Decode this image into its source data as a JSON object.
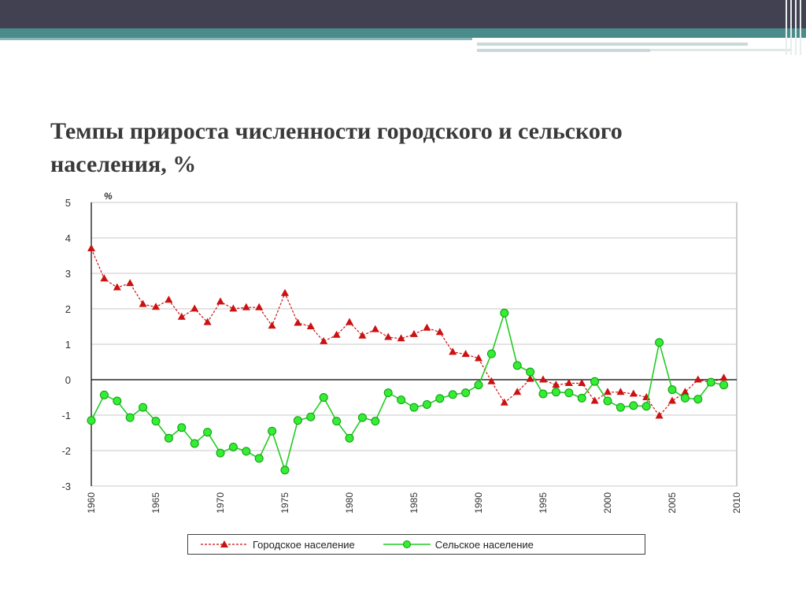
{
  "slide": {
    "title": "Темпы прироста численности городского и сельского населения, %"
  },
  "colors": {
    "urban": "#cc1111",
    "rural": "#22cc22",
    "rural_fill": "#33ee33",
    "grid": "#c8c8c8",
    "axis": "#000000"
  },
  "chart_data": {
    "type": "line",
    "unit_label": "%",
    "xlim": [
      1960,
      2010
    ],
    "ylim": [
      -3,
      5
    ],
    "x_ticks": [
      "1960",
      "1965",
      "1970",
      "1975",
      "1980",
      "1985",
      "1990",
      "1995",
      "2000",
      "2005",
      "2010"
    ],
    "y_ticks": [
      "5",
      "4",
      "3",
      "2",
      "1",
      "0",
      "-1",
      "-2",
      "-3"
    ],
    "legend_position": "bottom",
    "grid": true,
    "series": [
      {
        "name": "Городское население",
        "marker": "triangle",
        "x": [
          1960,
          1961,
          1962,
          1963,
          1964,
          1965,
          1966,
          1967,
          1968,
          1969,
          1970,
          1971,
          1972,
          1973,
          1974,
          1975,
          1976,
          1977,
          1978,
          1979,
          1980,
          1981,
          1982,
          1983,
          1984,
          1985,
          1986,
          1987,
          1988,
          1989,
          1990,
          1991,
          1992,
          1993,
          1994,
          1995,
          1996,
          1997,
          1998,
          1999,
          2000,
          2001,
          2002,
          2003,
          2004,
          2005,
          2006,
          2007,
          2008,
          2009
        ],
        "values": [
          3.7,
          2.85,
          2.6,
          2.72,
          2.13,
          2.05,
          2.25,
          1.77,
          2.0,
          1.62,
          2.2,
          2.0,
          2.04,
          2.04,
          1.52,
          2.44,
          1.6,
          1.5,
          1.08,
          1.26,
          1.62,
          1.24,
          1.42,
          1.2,
          1.16,
          1.28,
          1.46,
          1.34,
          0.78,
          0.72,
          0.6,
          -0.05,
          -0.65,
          -0.35,
          0.02,
          0.0,
          -0.15,
          -0.1,
          -0.1,
          -0.6,
          -0.35,
          -0.35,
          -0.4,
          -0.5,
          -1.02,
          -0.6,
          -0.35,
          0.0,
          -0.08,
          0.05
        ]
      },
      {
        "name": "Сельское население",
        "marker": "circle",
        "x": [
          1960,
          1961,
          1962,
          1963,
          1964,
          1965,
          1966,
          1967,
          1968,
          1969,
          1970,
          1971,
          1972,
          1973,
          1974,
          1975,
          1976,
          1977,
          1978,
          1979,
          1980,
          1981,
          1982,
          1983,
          1984,
          1985,
          1986,
          1987,
          1988,
          1989,
          1990,
          1991,
          1992,
          1993,
          1994,
          1995,
          1996,
          1997,
          1998,
          1999,
          2000,
          2001,
          2002,
          2003,
          2004,
          2005,
          2006,
          2007,
          2008,
          2009
        ],
        "values": [
          -1.15,
          -0.43,
          -0.6,
          -1.07,
          -0.78,
          -1.17,
          -1.65,
          -1.35,
          -1.8,
          -1.48,
          -2.07,
          -1.9,
          -2.02,
          -2.22,
          -1.45,
          -2.55,
          -1.15,
          -1.05,
          -0.5,
          -1.17,
          -1.65,
          -1.07,
          -1.17,
          -0.37,
          -0.57,
          -0.78,
          -0.7,
          -0.53,
          -0.42,
          -0.37,
          -0.15,
          0.73,
          1.88,
          0.4,
          0.22,
          -0.4,
          -0.35,
          -0.37,
          -0.52,
          -0.05,
          -0.6,
          -0.78,
          -0.73,
          -0.75,
          1.05,
          -0.28,
          -0.52,
          -0.55,
          -0.07,
          -0.15
        ]
      }
    ]
  }
}
